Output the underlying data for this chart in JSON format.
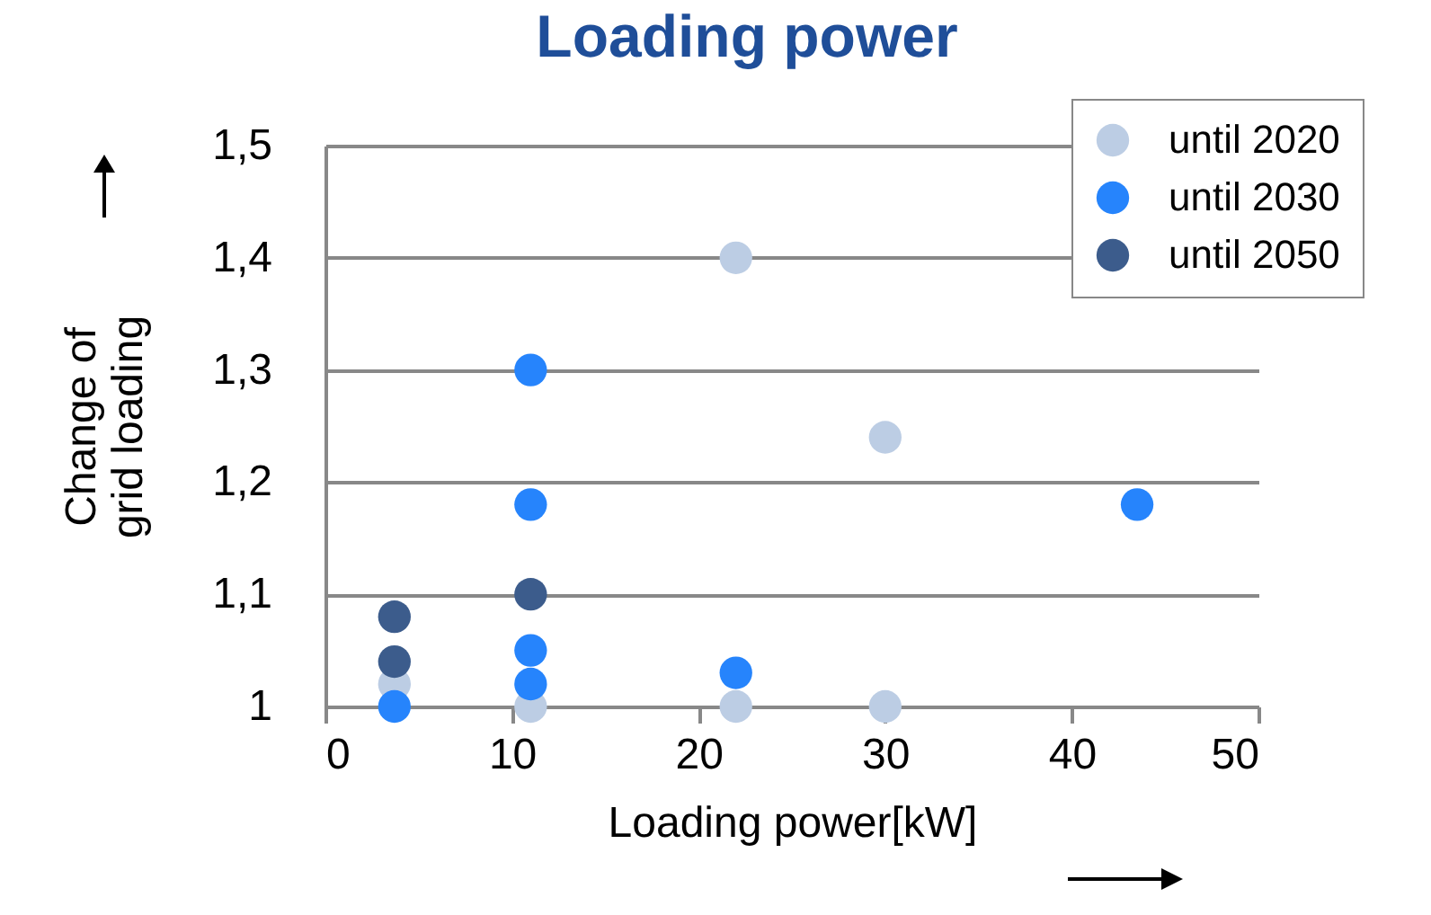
{
  "chart_data": {
    "type": "scatter",
    "title": "Loading power",
    "xlabel": "Loading power[kW]",
    "ylabel": "Change of\ngrid loading",
    "xlim": [
      0,
      50
    ],
    "xticks": [
      0,
      10,
      20,
      30,
      40,
      50
    ],
    "ylim": [
      1,
      1.5
    ],
    "yticks": [
      {
        "value": 1,
        "label": "1"
      },
      {
        "value": 1.1,
        "label": "1,1"
      },
      {
        "value": 1.2,
        "label": "1,2"
      },
      {
        "value": 1.3,
        "label": "1,3"
      },
      {
        "value": 1.4,
        "label": "1,4"
      },
      {
        "value": 1.5,
        "label": "1,5"
      }
    ],
    "grid": "y",
    "legend": "top right",
    "marker": "circle",
    "series": [
      {
        "name": "until 2020",
        "color": "#bccde4",
        "x": [
          3.7,
          11,
          22,
          22,
          30,
          30
        ],
        "values": [
          1.02,
          1.0,
          1.4,
          1.0,
          1.24,
          1.0
        ]
      },
      {
        "name": "until 2030",
        "color": "#2684fc",
        "x": [
          3.7,
          11,
          11,
          11,
          11,
          22,
          43.5
        ],
        "values": [
          1.0,
          1.3,
          1.18,
          1.05,
          1.02,
          1.03,
          1.18
        ]
      },
      {
        "name": "until 2050",
        "color": "#3c5c8c",
        "x": [
          3.7,
          3.7,
          11
        ],
        "values": [
          1.08,
          1.04,
          1.1
        ]
      }
    ]
  }
}
